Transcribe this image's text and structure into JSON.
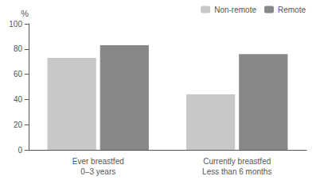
{
  "chart_data": {
    "type": "bar",
    "categories": [
      "Ever breastfed\n0–3 years",
      "Currently breastfed\nLess than 6 months"
    ],
    "series": [
      {
        "name": "Non-remote",
        "color": "#c8c8c8",
        "values": [
          73,
          44
        ]
      },
      {
        "name": "Remote",
        "color": "#888888",
        "values": [
          83,
          76
        ]
      }
    ],
    "ylabel": "%",
    "ylim": [
      0,
      100
    ],
    "yticks": [
      0,
      20,
      40,
      60,
      80,
      100
    ],
    "grid": false,
    "legend": "upper right"
  }
}
